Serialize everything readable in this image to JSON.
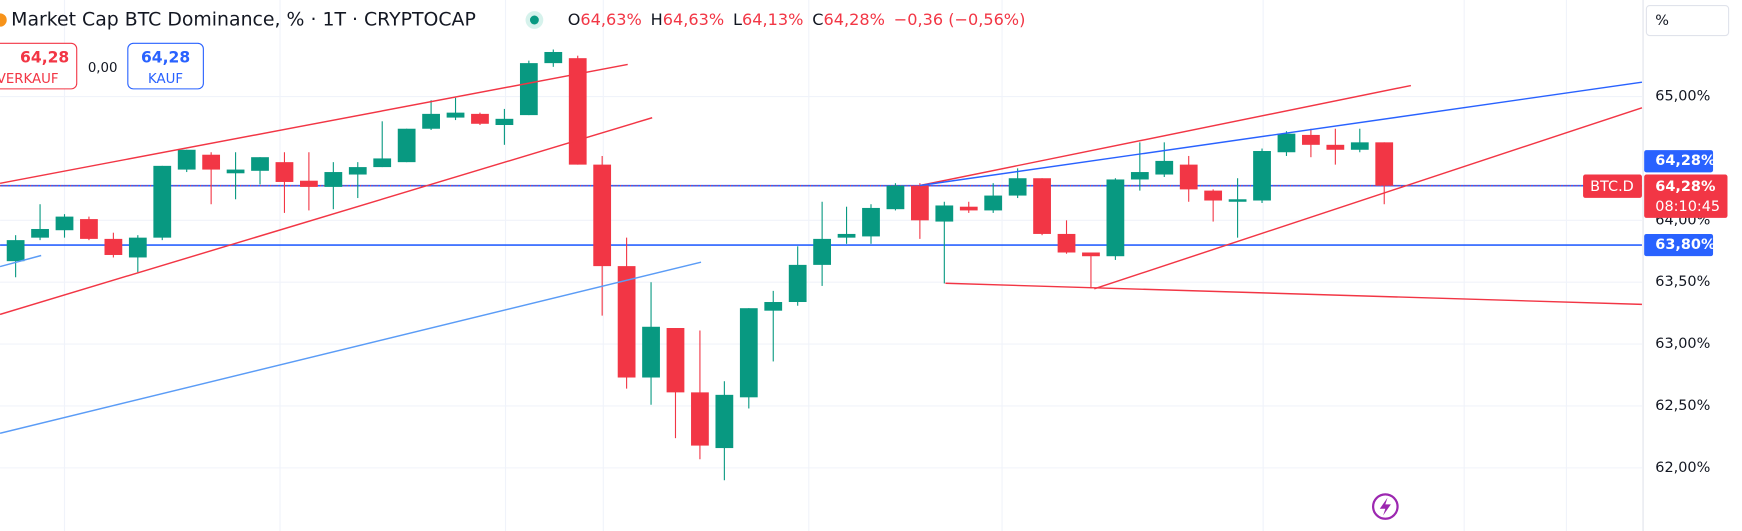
{
  "chart_data": {
    "type": "candlestick",
    "title": "Market Cap BTC Dominance, % · 1T · CRYPTOCAP",
    "legend": [
      {
        "key": "O",
        "value": "64,63%"
      },
      {
        "key": "H",
        "value": "64,63%"
      },
      {
        "key": "L",
        "value": "64,13%"
      },
      {
        "key": "C",
        "value": "64,28%"
      }
    ],
    "change": "−0,36 (−0,56%)",
    "open": [
      63.67,
      63.86,
      63.92,
      64.01,
      63.85,
      63.7,
      63.86,
      64.41,
      64.53,
      64.38,
      64.4,
      64.47,
      64.32,
      64.27,
      64.37,
      64.43,
      64.47,
      64.74,
      64.83,
      64.86,
      64.77,
      64.85,
      65.27,
      65.31,
      64.45,
      63.63,
      62.73,
      63.13,
      62.61,
      62.16,
      62.57,
      63.27,
      63.34,
      63.64,
      63.86,
      63.87,
      64.09,
      64.28,
      63.99,
      64.11,
      64.08,
      64.2,
      64.34,
      63.89,
      63.74,
      63.71,
      64.33,
      64.37,
      64.45,
      64.24,
      64.15,
      64.16,
      64.55,
      64.69,
      64.61,
      64.57,
      64.63
    ],
    "high": [
      63.88,
      64.13,
      64.05,
      64.03,
      63.9,
      63.88,
      64.44,
      64.57,
      64.55,
      64.55,
      64.51,
      64.55,
      64.55,
      64.47,
      64.47,
      64.8,
      64.74,
      64.97,
      64.99,
      64.87,
      64.9,
      65.29,
      65.38,
      65.33,
      64.52,
      63.86,
      63.5,
      63.13,
      63.11,
      62.7,
      63.29,
      63.43,
      63.79,
      64.15,
      64.11,
      64.13,
      64.3,
      64.3,
      64.15,
      64.15,
      64.3,
      64.42,
      64.34,
      64.0,
      63.74,
      64.34,
      64.63,
      64.63,
      64.52,
      64.25,
      64.34,
      64.58,
      64.72,
      64.74,
      64.74,
      64.74,
      64.63
    ],
    "low": [
      63.54,
      63.84,
      63.86,
      63.84,
      63.7,
      63.58,
      63.84,
      64.39,
      64.13,
      64.17,
      64.29,
      64.06,
      64.08,
      64.09,
      64.18,
      64.43,
      64.47,
      64.73,
      64.81,
      64.77,
      64.61,
      64.85,
      65.24,
      64.45,
      63.23,
      62.64,
      62.51,
      62.24,
      62.07,
      61.9,
      62.48,
      62.86,
      63.31,
      63.47,
      63.81,
      63.81,
      64.08,
      63.85,
      63.49,
      64.06,
      64.06,
      64.18,
      63.88,
      63.73,
      63.45,
      63.68,
      64.24,
      64.35,
      64.15,
      63.99,
      63.86,
      64.14,
      64.52,
      64.51,
      64.45,
      64.55,
      64.13
    ],
    "close": [
      63.84,
      63.93,
      64.03,
      63.85,
      63.72,
      63.86,
      64.44,
      64.57,
      64.41,
      64.41,
      64.51,
      64.31,
      64.27,
      64.39,
      64.43,
      64.5,
      64.74,
      64.86,
      64.87,
      64.78,
      64.82,
      65.27,
      65.36,
      64.45,
      63.63,
      62.73,
      63.14,
      62.61,
      62.18,
      62.59,
      63.29,
      63.34,
      63.64,
      63.85,
      63.89,
      64.1,
      64.28,
      64.0,
      64.12,
      64.08,
      64.2,
      64.34,
      63.89,
      63.74,
      63.71,
      64.33,
      64.39,
      64.48,
      64.25,
      64.16,
      64.17,
      64.56,
      64.7,
      64.61,
      64.57,
      64.63,
      64.28
    ],
    "up_color": "#089981",
    "down_color": "#f23645",
    "ylim": [
      61.49,
      65.78
    ],
    "yticks": [
      {
        "value": 62,
        "label": "62,00%"
      },
      {
        "value": 62.5,
        "label": "62,50%"
      },
      {
        "value": 63,
        "label": "63,00%"
      },
      {
        "value": 63.5,
        "label": "63,50%"
      },
      {
        "value": 64,
        "label": "64,00%"
      },
      {
        "value": 65,
        "label": "65,00%"
      }
    ],
    "grid": true,
    "price_lines": [
      {
        "value": 64.28,
        "label": "64,28%"
      },
      {
        "value": 63.8,
        "label": "63,80%"
      }
    ],
    "last_price": {
      "value": 64.28,
      "label": "64,28%",
      "symbol": "BTC.D",
      "countdown": "08:10:45"
    },
    "unit": "%"
  },
  "trade_panel": {
    "sell_price": "64,28",
    "sell_label": "VERKAUF",
    "spread": "0,00",
    "buy_price": "64,28",
    "buy_label": "KAUF"
  }
}
